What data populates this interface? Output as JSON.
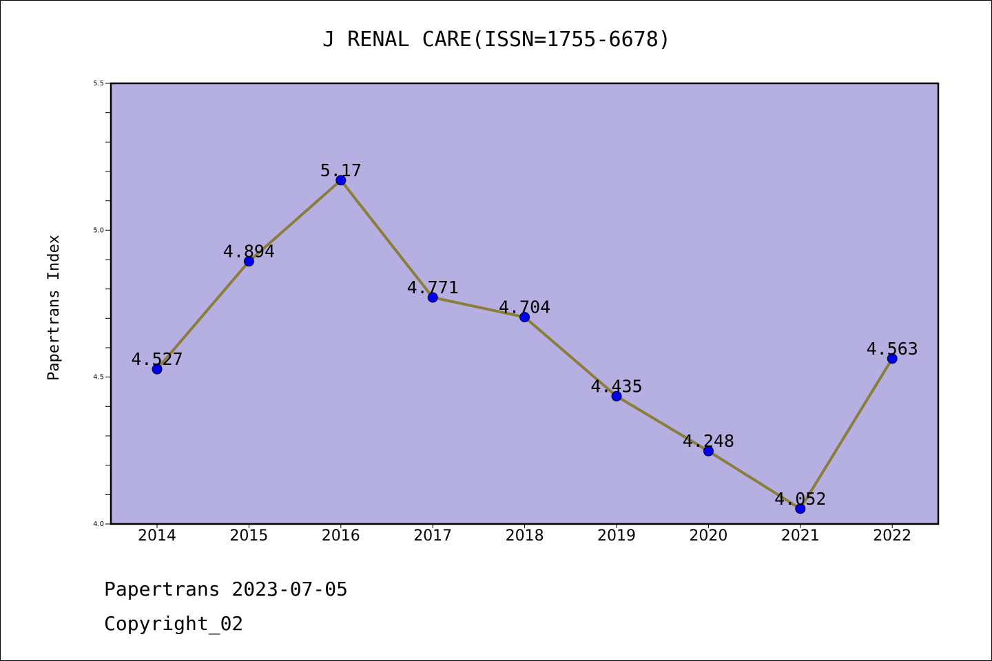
{
  "chart_data": {
    "type": "line",
    "title": "J RENAL CARE(ISSN=1755-6678)",
    "xlabel": "",
    "ylabel": "Papertrans Index",
    "categories": [
      "2014",
      "2015",
      "2016",
      "2017",
      "2018",
      "2019",
      "2020",
      "2021",
      "2022"
    ],
    "series": [
      {
        "values": [
          4.527,
          4.894,
          5.17,
          4.771,
          4.704,
          4.435,
          4.248,
          4.052,
          4.563
        ],
        "labels": [
          "4.527",
          "4.894",
          "5.17",
          "4.771",
          "4.704",
          "4.435",
          "4.248",
          "4.052",
          "4.563"
        ],
        "line_color": "#8b7d3c",
        "marker_color": "#0000ee"
      }
    ],
    "ylim": [
      4.0,
      5.5
    ],
    "yticks": [
      4.0,
      4.5,
      5.0,
      5.5
    ],
    "ytick_labels": [
      "4.0",
      "4.5",
      "5.0",
      "5.5"
    ],
    "grid": false,
    "legend": "none",
    "plot_background": "#b5afe2"
  },
  "footer": {
    "line1": "Papertrans 2023-07-05",
    "line2": "Copyright_02"
  }
}
